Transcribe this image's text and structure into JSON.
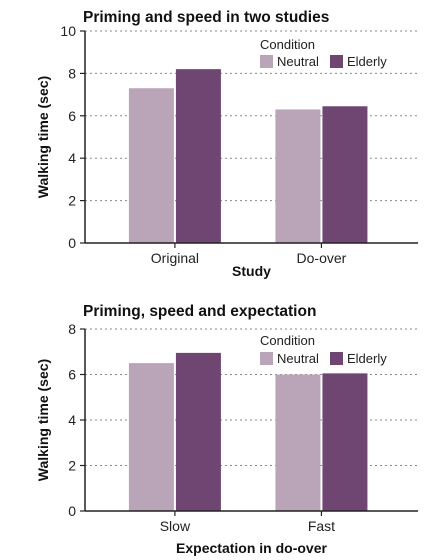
{
  "chart_data": [
    {
      "type": "bar",
      "title": "Priming and speed in two studies",
      "xlabel": "Study",
      "ylabel": "Walking time (sec)",
      "ylim": [
        0,
        10
      ],
      "yticks": [
        0,
        2,
        4,
        6,
        8,
        10
      ],
      "grid": true,
      "legend": {
        "title": "Condition",
        "placement": "top-right"
      },
      "categories": [
        "Original",
        "Do-over"
      ],
      "series": [
        {
          "name": "Neutral",
          "color": "#b9a4b8",
          "values": [
            7.3,
            6.3
          ]
        },
        {
          "name": "Elderly",
          "color": "#6e4671",
          "values": [
            8.2,
            6.45
          ]
        }
      ]
    },
    {
      "type": "bar",
      "title": "Priming, speed and expectation",
      "xlabel": "Expectation in do-over",
      "ylabel": "Walking time (sec)",
      "ylim": [
        0,
        8
      ],
      "yticks": [
        0,
        2,
        4,
        6,
        8
      ],
      "grid": true,
      "legend": {
        "title": "Condition",
        "placement": "top-right"
      },
      "categories": [
        "Slow",
        "Fast"
      ],
      "series": [
        {
          "name": "Neutral",
          "color": "#b9a4b8",
          "values": [
            6.5,
            6.0
          ]
        },
        {
          "name": "Elderly",
          "color": "#6e4671",
          "values": [
            6.95,
            6.05
          ]
        }
      ]
    }
  ]
}
